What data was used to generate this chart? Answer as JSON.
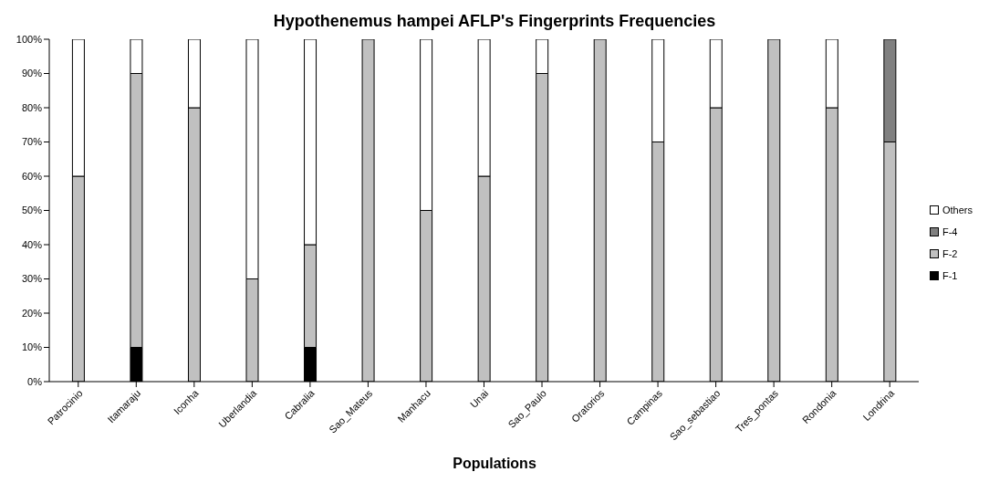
{
  "chart_data": {
    "type": "bar",
    "title": "Hypothenemus hampei AFLP's Fingerprints Frequencies",
    "xlabel": "Populations",
    "categories": [
      "Patrocinio",
      "Itamaraju",
      "Iconha",
      "Uberlandia",
      "Cabralia",
      "Sao_Mateus",
      "Manhacu",
      "Unai",
      "Sao_Paulo",
      "Oratorios",
      "Campinas",
      "Sao_sebastiao",
      "Tres_pontas",
      "Rondonia",
      "Londrina"
    ],
    "series": [
      {
        "name": "F-1",
        "color": "#000000",
        "values": [
          0,
          10,
          0,
          0,
          10,
          0,
          0,
          0,
          0,
          0,
          0,
          0,
          0,
          0,
          0
        ]
      },
      {
        "name": "F-2",
        "color": "#c0c0c0",
        "values": [
          60,
          80,
          80,
          30,
          30,
          100,
          50,
          60,
          90,
          100,
          70,
          80,
          100,
          80,
          70
        ]
      },
      {
        "name": "F-4",
        "color": "#808080",
        "values": [
          0,
          0,
          0,
          0,
          0,
          0,
          0,
          0,
          0,
          0,
          0,
          0,
          0,
          0,
          30
        ]
      },
      {
        "name": "Others",
        "color": "#ffffff",
        "values": [
          40,
          10,
          20,
          70,
          60,
          0,
          50,
          40,
          10,
          0,
          30,
          20,
          0,
          20,
          0
        ]
      }
    ],
    "stacked": true,
    "ylim": [
      0,
      100
    ],
    "yticks": [
      {
        "value": 0,
        "label": "0%"
      },
      {
        "value": 10,
        "label": "10%"
      },
      {
        "value": 20,
        "label": "20%"
      },
      {
        "value": 30,
        "label": "30%"
      },
      {
        "value": 40,
        "label": "40%"
      },
      {
        "value": 50,
        "label": "50%"
      },
      {
        "value": 60,
        "label": "60%"
      },
      {
        "value": 70,
        "label": "70%"
      },
      {
        "value": 80,
        "label": "80%"
      },
      {
        "value": 90,
        "label": "90%"
      },
      {
        "value": 100,
        "label": "100%"
      }
    ],
    "grid": false,
    "legend": "right"
  }
}
